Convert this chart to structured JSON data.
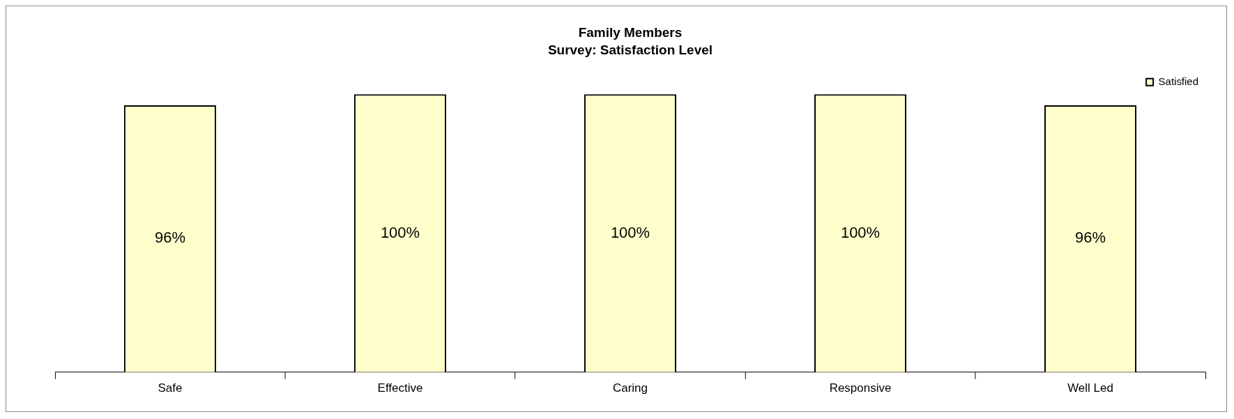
{
  "chart_data": {
    "type": "bar",
    "title": "Family Members",
    "subtitle": "Survey: Satisfaction Level",
    "categories": [
      "Safe",
      "Effective",
      "Caring",
      "Responsive",
      "Well Led"
    ],
    "series": [
      {
        "name": "Satisfied",
        "color": "#ffffcc",
        "values": [
          96,
          100,
          100,
          100,
          96
        ],
        "value_labels": [
          "96%",
          "100%",
          "100%",
          "100%",
          "96%"
        ]
      }
    ],
    "tick_labels": "x",
    "grid": false,
    "legend": "top right"
  }
}
